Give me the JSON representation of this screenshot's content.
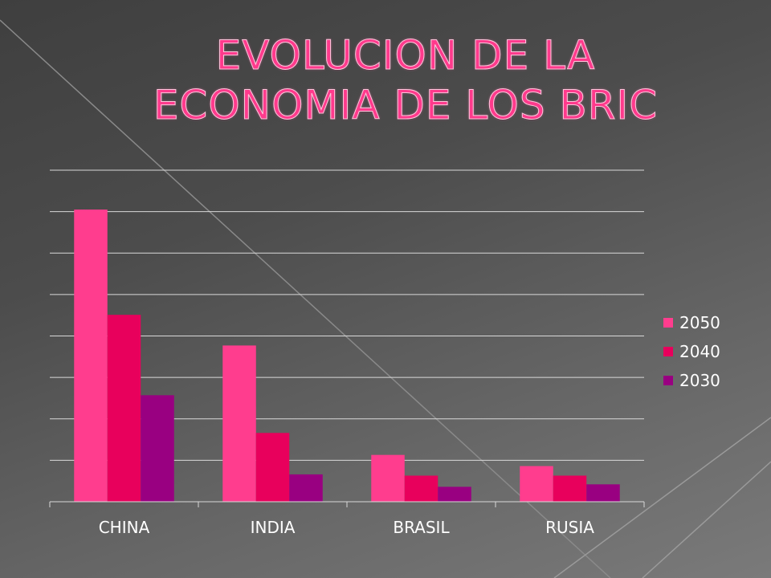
{
  "slide": {
    "title_line1": "EVOLUCION DE LA",
    "title_line2": "ECONOMIA DE LOS BRIC"
  },
  "colors": {
    "s2050": "#ff3d8e",
    "s2040": "#e8005c",
    "s2030": "#990081",
    "grid": "#d9d9d9",
    "axis_text": "#ffffff"
  },
  "chart_data": {
    "type": "bar",
    "title": "",
    "xlabel": "",
    "ylabel": "",
    "categories": [
      "CHINA",
      "INDIA",
      "BRASIL",
      "RUSIA"
    ],
    "series": [
      {
        "name": "2050",
        "values": [
          70.5,
          37.7,
          11.3,
          8.6
        ]
      },
      {
        "name": "2040",
        "values": [
          45.1,
          16.6,
          6.3,
          6.3
        ]
      },
      {
        "name": "2030",
        "values": [
          25.7,
          6.6,
          3.6,
          4.2
        ]
      }
    ],
    "ylim": [
      0,
      80
    ],
    "grid": true,
    "y_tick_labels_shown": false,
    "legend_position": "right"
  }
}
